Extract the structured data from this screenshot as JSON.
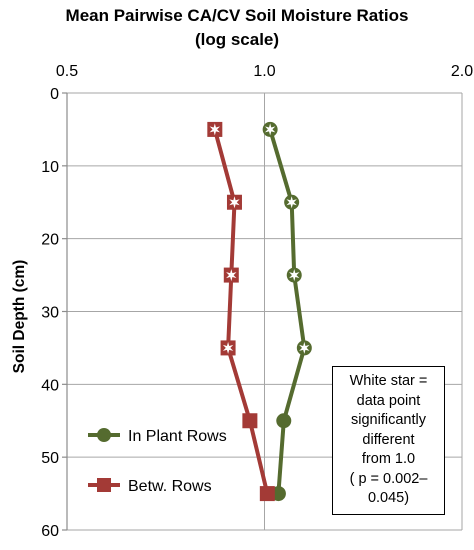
{
  "chart_data": {
    "type": "line",
    "title": [
      "Mean Pairwise CA/CV Soil Moisture Ratios",
      "(log scale)"
    ],
    "xscale": "log",
    "xlim": [
      0.5,
      2.0
    ],
    "xticks": [
      0.5,
      1.0,
      2.0
    ],
    "xtick_labels": [
      "0.5",
      "1.0",
      "2.0"
    ],
    "xaxis_position": "top",
    "ylabel": "Soil Depth (cm)",
    "ylim": [
      0,
      60
    ],
    "yticks": [
      0,
      10,
      20,
      30,
      40,
      50,
      60
    ],
    "yaxis_inverted": true,
    "grid": {
      "horizontal": true,
      "vertical": true
    },
    "legend_placement": "bottom-left",
    "series": [
      {
        "name": "In Plant Rows",
        "color": "#556b2f",
        "marker": "circle",
        "points": [
          {
            "x": 1.02,
            "y": 5,
            "significant": true
          },
          {
            "x": 1.1,
            "y": 15,
            "significant": true
          },
          {
            "x": 1.11,
            "y": 25,
            "significant": true
          },
          {
            "x": 1.15,
            "y": 35,
            "significant": true
          },
          {
            "x": 1.07,
            "y": 45,
            "significant": false
          },
          {
            "x": 1.05,
            "y": 55,
            "significant": false
          }
        ]
      },
      {
        "name": "Betw. Rows",
        "color": "#a33a36",
        "marker": "square",
        "points": [
          {
            "x": 0.84,
            "y": 5,
            "significant": true
          },
          {
            "x": 0.9,
            "y": 15,
            "significant": true
          },
          {
            "x": 0.89,
            "y": 25,
            "significant": true
          },
          {
            "x": 0.88,
            "y": 35,
            "significant": true
          },
          {
            "x": 0.95,
            "y": 45,
            "significant": false
          },
          {
            "x": 1.01,
            "y": 55,
            "significant": false
          }
        ]
      }
    ],
    "annotation": {
      "lines": [
        "White star =",
        "data point",
        "significantly",
        "different",
        "from 1.0",
        "( p = 0.002–",
        "0.045)"
      ]
    }
  }
}
